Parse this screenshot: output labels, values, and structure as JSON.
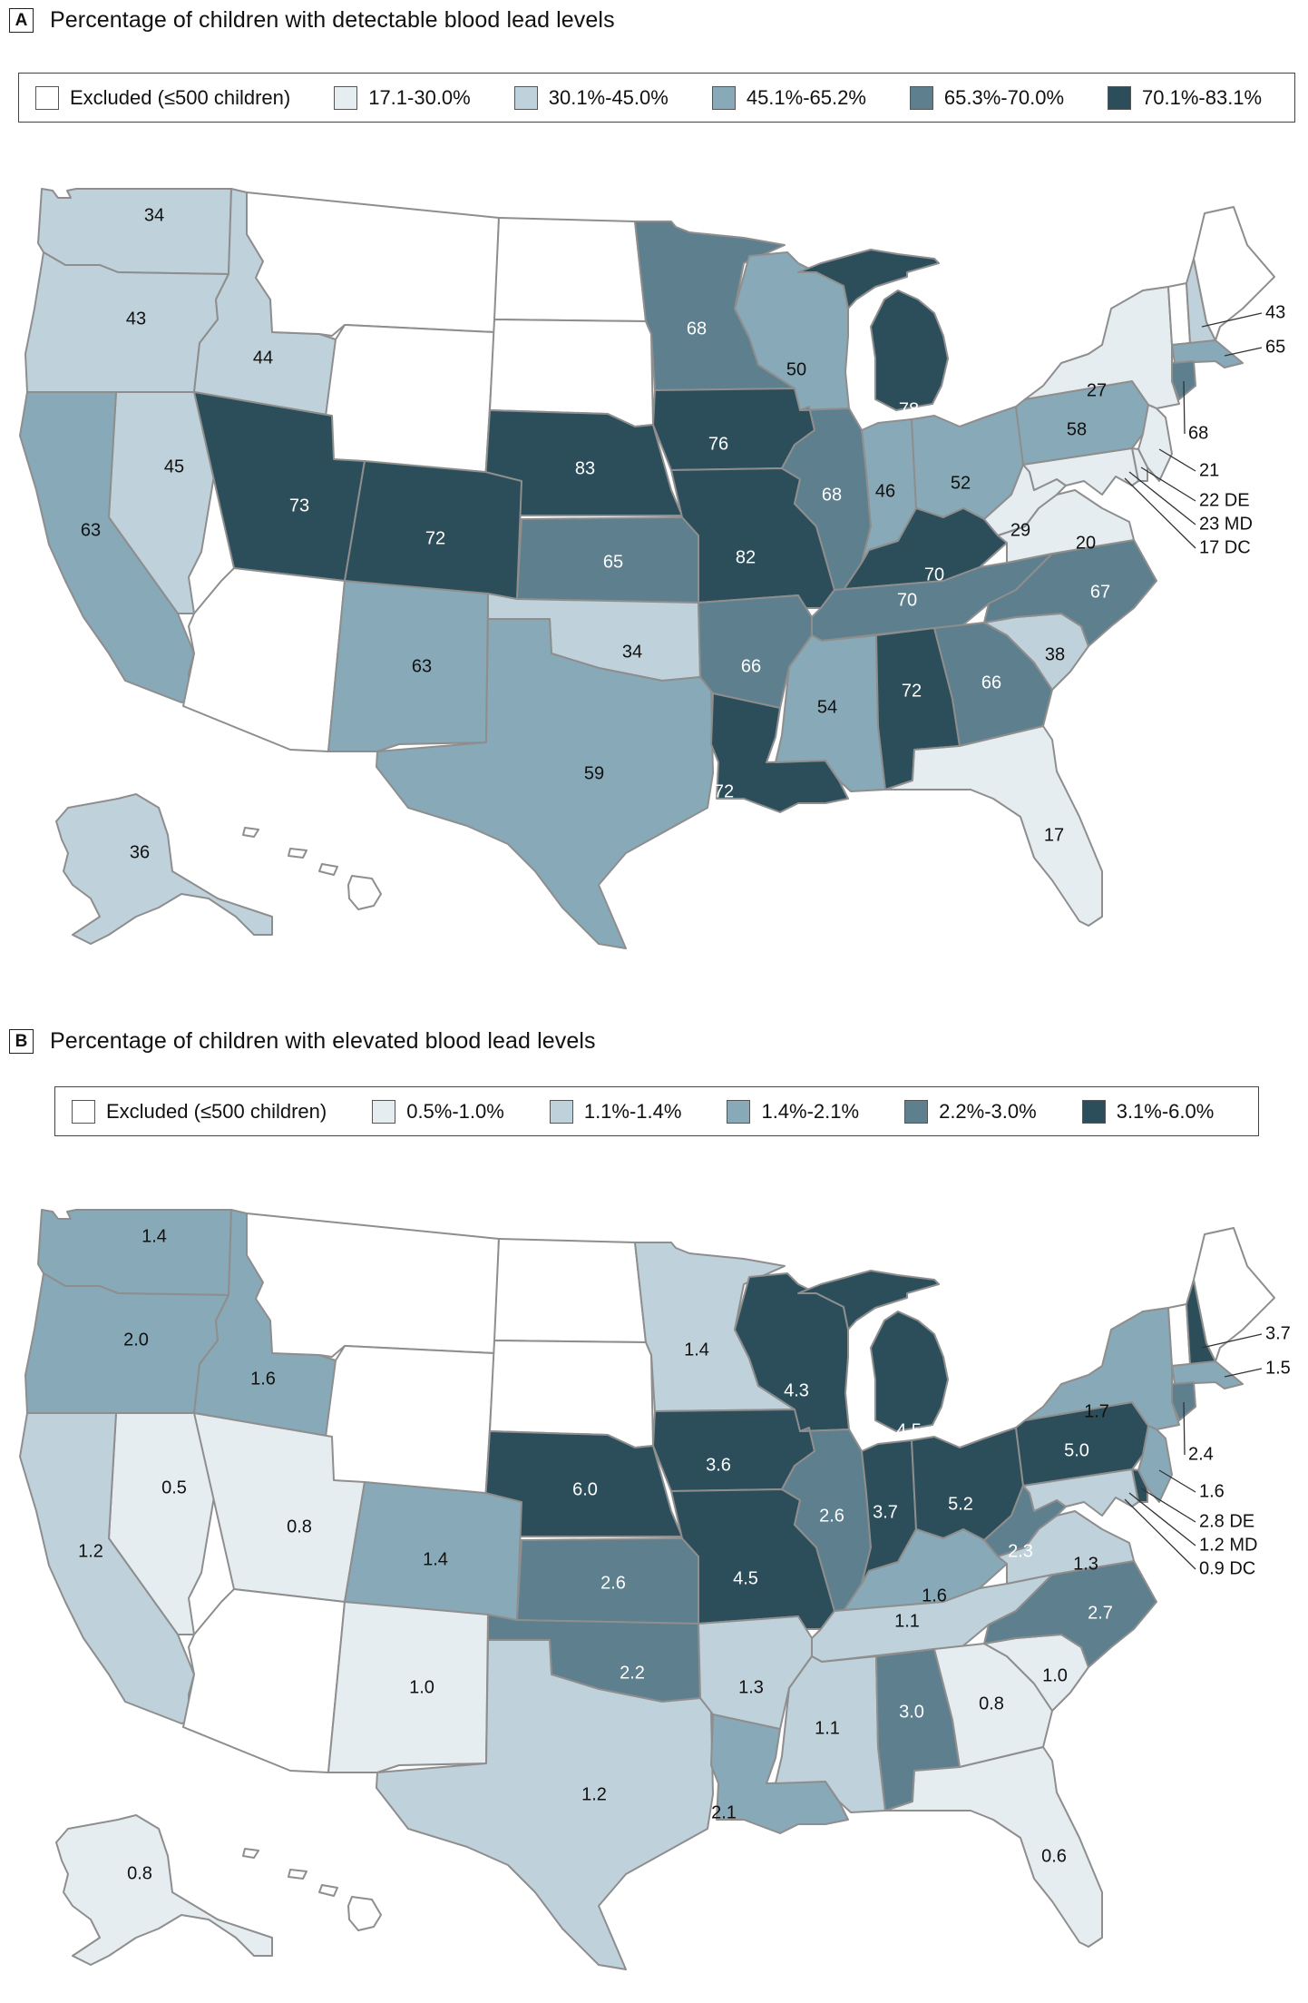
{
  "colors": {
    "excluded": "#ffffff",
    "border": "#8e8e8e"
  },
  "panel_a": {
    "letter": "A",
    "title": "Percentage of children with detectable blood lead levels",
    "legend": [
      {
        "label": "Excluded (≤500 children)",
        "color": "#ffffff"
      },
      {
        "label": "17.1-30.0%",
        "color": "#e6edf1"
      },
      {
        "label": "30.1%-45.0%",
        "color": "#bfd1da"
      },
      {
        "label": "45.1%-65.2%",
        "color": "#88a9b8"
      },
      {
        "label": "65.3%-70.0%",
        "color": "#5d7f8e"
      },
      {
        "label": "70.1%-83.1%",
        "color": "#2c4e5b"
      }
    ],
    "states": {
      "WA": {
        "value": "34",
        "bin": 2
      },
      "OR": {
        "value": "43",
        "bin": 2
      },
      "ID": {
        "value": "44",
        "bin": 2
      },
      "MT": {
        "value": "",
        "bin": 0
      },
      "WY": {
        "value": "",
        "bin": 0
      },
      "ND": {
        "value": "",
        "bin": 0
      },
      "SD": {
        "value": "",
        "bin": 0
      },
      "NV": {
        "value": "45",
        "bin": 2
      },
      "CA": {
        "value": "63",
        "bin": 3
      },
      "UT": {
        "value": "73",
        "bin": 5
      },
      "CO": {
        "value": "72",
        "bin": 5
      },
      "AZ": {
        "value": "",
        "bin": 0
      },
      "NM": {
        "value": "63",
        "bin": 3
      },
      "NE": {
        "value": "83",
        "bin": 5
      },
      "KS": {
        "value": "65",
        "bin": 4
      },
      "OK": {
        "value": "34",
        "bin": 2
      },
      "TX": {
        "value": "59",
        "bin": 3
      },
      "MN": {
        "value": "68",
        "bin": 4
      },
      "IA": {
        "value": "76",
        "bin": 5
      },
      "MO": {
        "value": "82",
        "bin": 5
      },
      "AR": {
        "value": "66",
        "bin": 4
      },
      "LA": {
        "value": "72",
        "bin": 5
      },
      "WI": {
        "value": "50",
        "bin": 3
      },
      "IL": {
        "value": "68",
        "bin": 4
      },
      "MI": {
        "value": "78",
        "bin": 5
      },
      "IN": {
        "value": "46",
        "bin": 3
      },
      "OH": {
        "value": "52",
        "bin": 3
      },
      "KY": {
        "value": "70",
        "bin": 5
      },
      "TN": {
        "value": "70",
        "bin": 4
      },
      "MS": {
        "value": "54",
        "bin": 3
      },
      "AL": {
        "value": "72",
        "bin": 5
      },
      "GA": {
        "value": "66",
        "bin": 4
      },
      "FL": {
        "value": "17",
        "bin": 1
      },
      "SC": {
        "value": "38",
        "bin": 2
      },
      "NC": {
        "value": "67",
        "bin": 4
      },
      "VA": {
        "value": "20",
        "bin": 1
      },
      "WV": {
        "value": "29",
        "bin": 1
      },
      "PA": {
        "value": "58",
        "bin": 3
      },
      "NY": {
        "value": "27",
        "bin": 1
      },
      "AK": {
        "value": "36",
        "bin": 2
      },
      "HI": {
        "value": "",
        "bin": 0
      },
      "ME": {
        "value": "",
        "bin": 0
      },
      "VT": {
        "value": "",
        "bin": 0
      },
      "NH": {
        "value": "43",
        "bin": 2
      },
      "MA": {
        "value": "65",
        "bin": 3
      },
      "CT": {
        "value": "68",
        "bin": 4
      },
      "NJ": {
        "value": "21",
        "bin": 1
      },
      "DE": {
        "value": "22",
        "bin": 1
      },
      "MD": {
        "value": "23",
        "bin": 1
      }
    },
    "callouts": {
      "NH": "43",
      "MA": "65",
      "CT": "68",
      "NJ": "21",
      "DE": "22 DE",
      "MD": "23 MD",
      "DC": "17 DC"
    }
  },
  "panel_b": {
    "letter": "B",
    "title": "Percentage of children with elevated blood lead levels",
    "legend": [
      {
        "label": "Excluded (≤500 children)",
        "color": "#ffffff"
      },
      {
        "label": "0.5%-1.0%",
        "color": "#e6edf1"
      },
      {
        "label": "1.1%-1.4%",
        "color": "#bfd1da"
      },
      {
        "label": "1.4%-2.1%",
        "color": "#88a9b8"
      },
      {
        "label": "2.2%-3.0%",
        "color": "#5d7f8e"
      },
      {
        "label": "3.1%-6.0%",
        "color": "#2c4e5b"
      }
    ],
    "states": {
      "WA": {
        "value": "1.4",
        "bin": 3
      },
      "OR": {
        "value": "2.0",
        "bin": 3
      },
      "ID": {
        "value": "1.6",
        "bin": 3
      },
      "MT": {
        "value": "",
        "bin": 0
      },
      "WY": {
        "value": "",
        "bin": 0
      },
      "ND": {
        "value": "",
        "bin": 0
      },
      "SD": {
        "value": "",
        "bin": 0
      },
      "NV": {
        "value": "0.5",
        "bin": 1
      },
      "CA": {
        "value": "1.2",
        "bin": 2
      },
      "UT": {
        "value": "0.8",
        "bin": 1
      },
      "CO": {
        "value": "1.4",
        "bin": 3
      },
      "AZ": {
        "value": "",
        "bin": 0
      },
      "NM": {
        "value": "1.0",
        "bin": 1
      },
      "NE": {
        "value": "6.0",
        "bin": 5
      },
      "KS": {
        "value": "2.6",
        "bin": 4
      },
      "OK": {
        "value": "2.2",
        "bin": 4
      },
      "TX": {
        "value": "1.2",
        "bin": 2
      },
      "MN": {
        "value": "1.4",
        "bin": 2
      },
      "IA": {
        "value": "3.6",
        "bin": 5
      },
      "MO": {
        "value": "4.5",
        "bin": 5
      },
      "AR": {
        "value": "1.3",
        "bin": 2
      },
      "LA": {
        "value": "2.1",
        "bin": 3
      },
      "WI": {
        "value": "4.3",
        "bin": 5
      },
      "IL": {
        "value": "2.6",
        "bin": 4
      },
      "MI": {
        "value": "4.5",
        "bin": 5
      },
      "IN": {
        "value": "3.7",
        "bin": 5
      },
      "OH": {
        "value": "5.2",
        "bin": 5
      },
      "KY": {
        "value": "1.6",
        "bin": 3
      },
      "TN": {
        "value": "1.1",
        "bin": 2
      },
      "MS": {
        "value": "1.1",
        "bin": 2
      },
      "AL": {
        "value": "3.0",
        "bin": 4
      },
      "GA": {
        "value": "0.8",
        "bin": 1
      },
      "FL": {
        "value": "0.6",
        "bin": 1
      },
      "SC": {
        "value": "1.0",
        "bin": 1
      },
      "NC": {
        "value": "2.7",
        "bin": 4
      },
      "VA": {
        "value": "1.3",
        "bin": 2
      },
      "WV": {
        "value": "2.3",
        "bin": 4
      },
      "PA": {
        "value": "5.0",
        "bin": 5
      },
      "NY": {
        "value": "1.7",
        "bin": 3
      },
      "AK": {
        "value": "0.8",
        "bin": 1
      },
      "HI": {
        "value": "",
        "bin": 0
      },
      "ME": {
        "value": "",
        "bin": 0
      },
      "VT": {
        "value": "",
        "bin": 0
      },
      "NH": {
        "value": "3.7",
        "bin": 5
      },
      "MA": {
        "value": "1.5",
        "bin": 3
      },
      "CT": {
        "value": "2.4",
        "bin": 4
      },
      "NJ": {
        "value": "1.6",
        "bin": 3
      },
      "DE": {
        "value": "2.8",
        "bin": 5
      },
      "MD": {
        "value": "1.2",
        "bin": 2
      }
    },
    "callouts": {
      "NH": "3.7",
      "MA": "1.5",
      "CT": "2.4",
      "NJ": "1.6",
      "DE": "2.8 DE",
      "MD": "1.2 MD",
      "DC": "0.9 DC"
    }
  }
}
